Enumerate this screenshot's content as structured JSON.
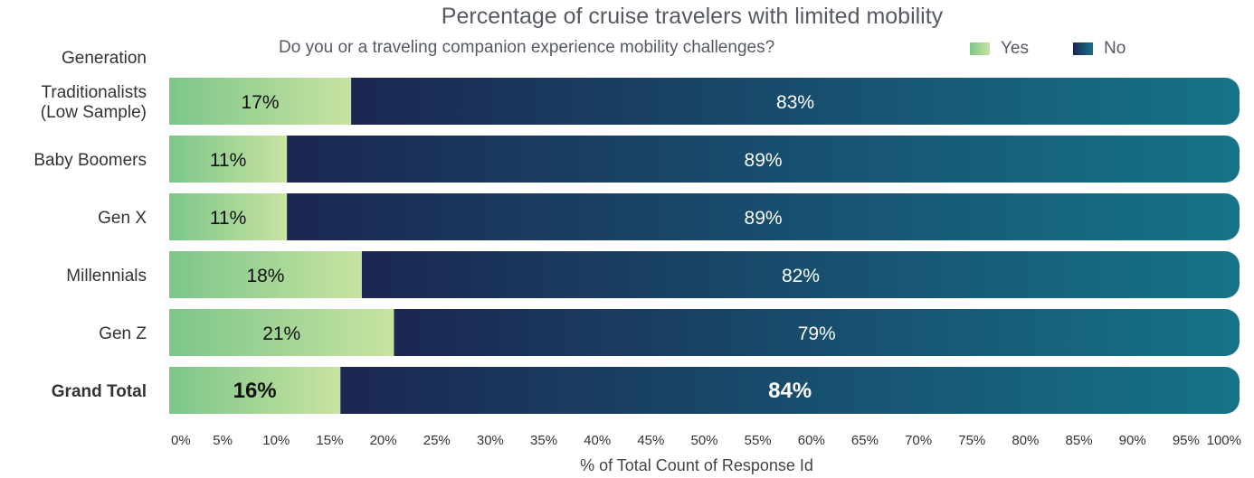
{
  "chart_data": {
    "type": "bar",
    "orientation": "horizontal",
    "stacked": true,
    "title": "Percentage of cruise travelers with limited mobility",
    "subtitle": "Do you or a traveling companion experience mobility challenges?",
    "row_header": "Generation",
    "categories": [
      "Traditionalists\n(Low Sample)",
      "Baby Boomers",
      "Gen X",
      "Millennials",
      "Gen Z",
      "Grand Total"
    ],
    "series": [
      {
        "name": "Yes",
        "values": [
          17,
          11,
          11,
          18,
          21,
          16
        ],
        "labels": [
          "17%",
          "11%",
          "11%",
          "18%",
          "21%",
          "16%"
        ],
        "color_start": "#7cc68a",
        "color_end": "#c8e3a0"
      },
      {
        "name": "No",
        "values": [
          83,
          89,
          89,
          82,
          79,
          84
        ],
        "labels": [
          "83%",
          "89%",
          "89%",
          "82%",
          "79%",
          "84%"
        ],
        "color_start": "#1b2750",
        "color_end": "#15738a"
      }
    ],
    "xlabel": "% of Total Count of Response Id",
    "xlim": [
      0,
      100
    ],
    "xticks": [
      0,
      5,
      10,
      15,
      20,
      25,
      30,
      35,
      40,
      45,
      50,
      55,
      60,
      65,
      70,
      75,
      80,
      85,
      90,
      95,
      100
    ],
    "xtick_labels": [
      "0%",
      "5%",
      "10%",
      "15%",
      "20%",
      "25%",
      "30%",
      "35%",
      "40%",
      "45%",
      "50%",
      "55%",
      "60%",
      "65%",
      "70%",
      "75%",
      "80%",
      "85%",
      "90%",
      "95%",
      "100%"
    ],
    "bold_category": "Grand Total",
    "legend_position": "top",
    "grid": false
  }
}
